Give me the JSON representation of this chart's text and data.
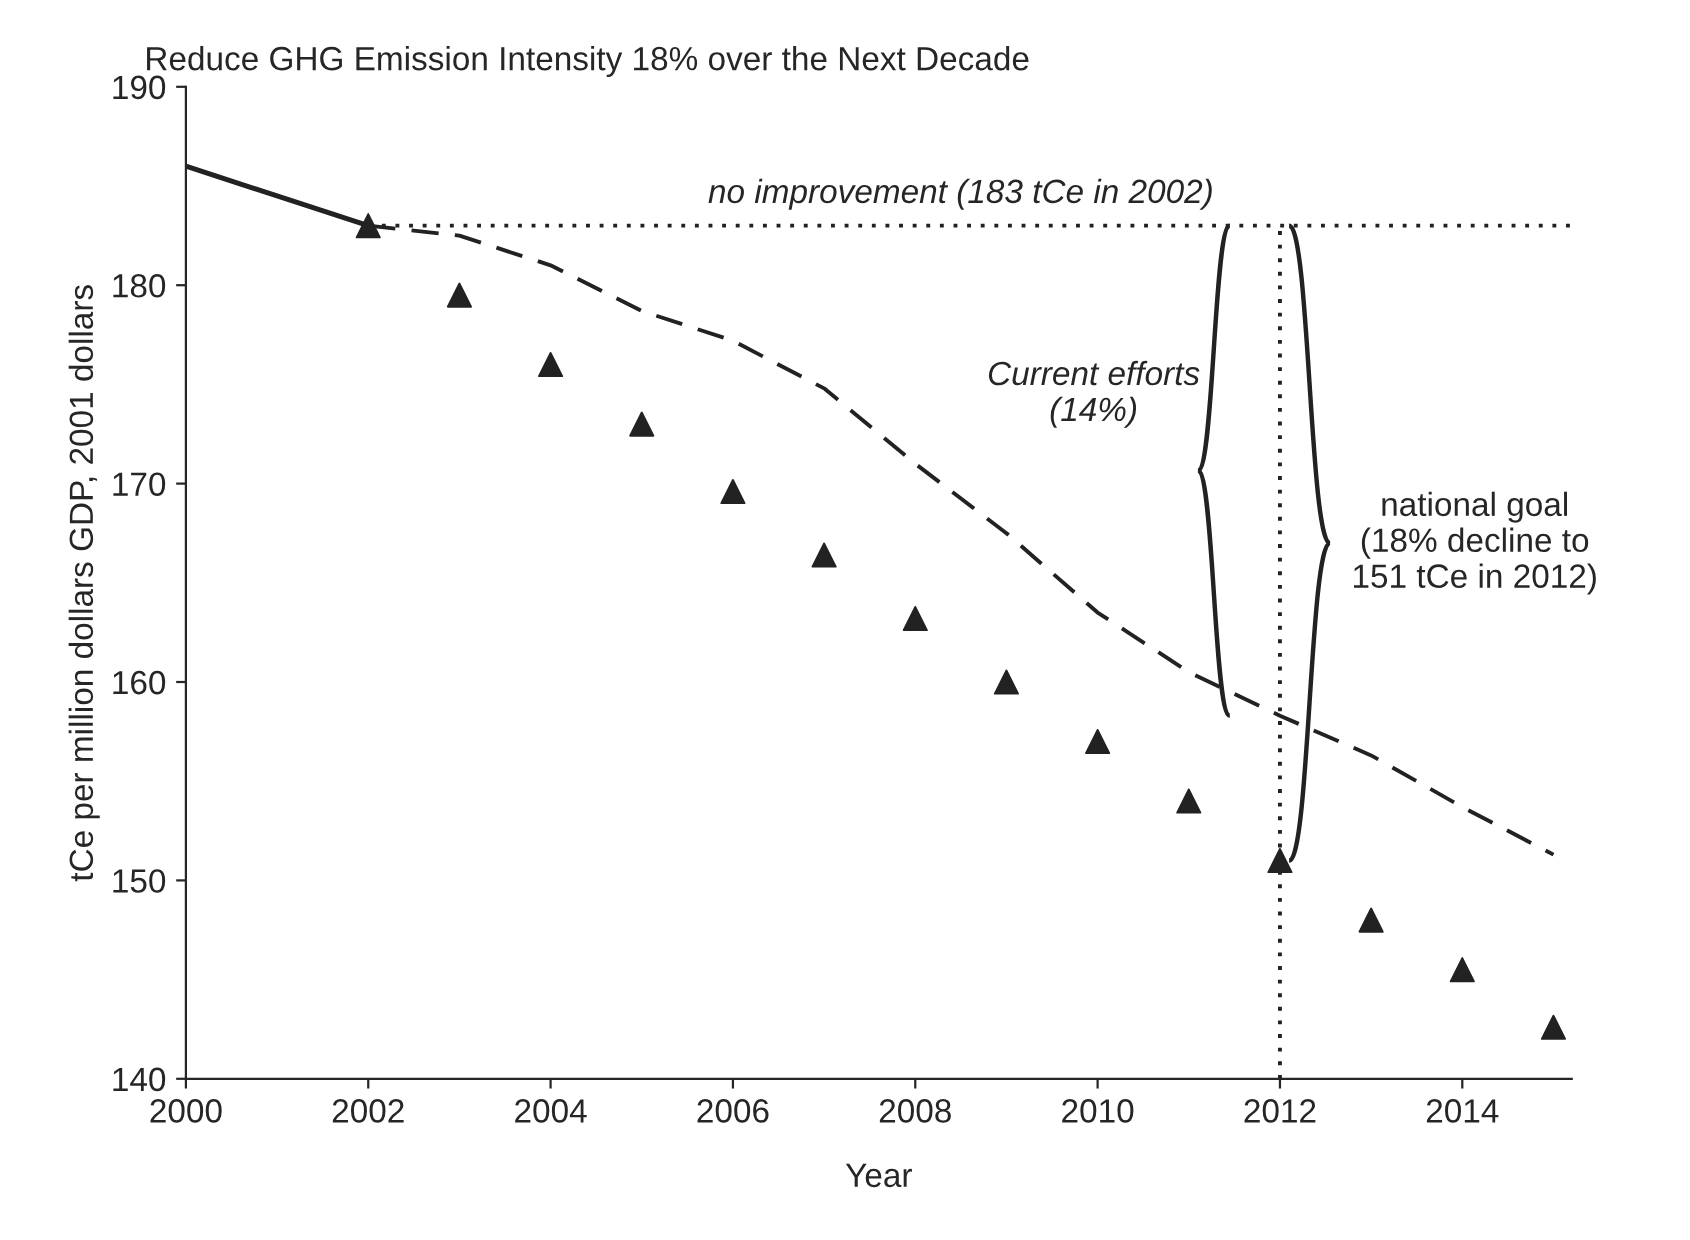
{
  "chart_data": {
    "type": "line",
    "title": "Reduce GHG Emission Intensity 18% over the Next Decade",
    "xlabel": "Year",
    "ylabel": "tCe per million dollars GDP, 2001 dollars",
    "xlim": [
      2000,
      2015.2
    ],
    "xticks": [
      2000,
      2002,
      2004,
      2006,
      2008,
      2010,
      2012,
      2014
    ],
    "ylim": [
      140,
      190
    ],
    "yticks": [
      140,
      150,
      160,
      170,
      180,
      190
    ],
    "grid": false,
    "legend": false,
    "series": [
      {
        "color": "#222222",
        "line_style": "solid",
        "x": [
          2000,
          2001,
          2002
        ],
        "values": [
          186,
          184.5,
          183
        ]
      },
      {
        "color": "#222222",
        "line_style": "dashed",
        "x": [
          2002,
          2003,
          2004,
          2005,
          2006,
          2007,
          2008,
          2009,
          2010,
          2011,
          2012,
          2013,
          2014,
          2015
        ],
        "values": [
          183,
          182.5,
          181,
          178.7,
          177.2,
          174.8,
          171,
          167.5,
          163.5,
          160.5,
          158.3,
          156.3,
          153.7,
          151.3
        ]
      },
      {
        "type": "scatter",
        "color": "#222222",
        "marker": "triangle",
        "x": [
          2002,
          2003,
          2004,
          2005,
          2006,
          2007,
          2008,
          2009,
          2010,
          2011,
          2012,
          2013,
          2014,
          2015
        ],
        "values": [
          183,
          179.5,
          176,
          173,
          169.6,
          166.4,
          163.2,
          160,
          157,
          154,
          151,
          148,
          145.5,
          142.6
        ]
      },
      {
        "color": "#222222",
        "line_style": "dotted",
        "x": [
          2002,
          2015.2
        ],
        "values": [
          183,
          183
        ]
      },
      {
        "color": "#222222",
        "line_style": "dotted",
        "x": [
          2012,
          2012
        ],
        "values": [
          140,
          183
        ]
      }
    ],
    "annotations": [
      {
        "text": "no improvement (183 tCe in 2002)",
        "x": 2008.5,
        "y": 183
      },
      "Current efforts\n(14%)",
      {
        "text": "national goal\n(18% decline to\n151 tCe in 2012)",
        "x": 2012,
        "y": 151
      }
    ]
  }
}
